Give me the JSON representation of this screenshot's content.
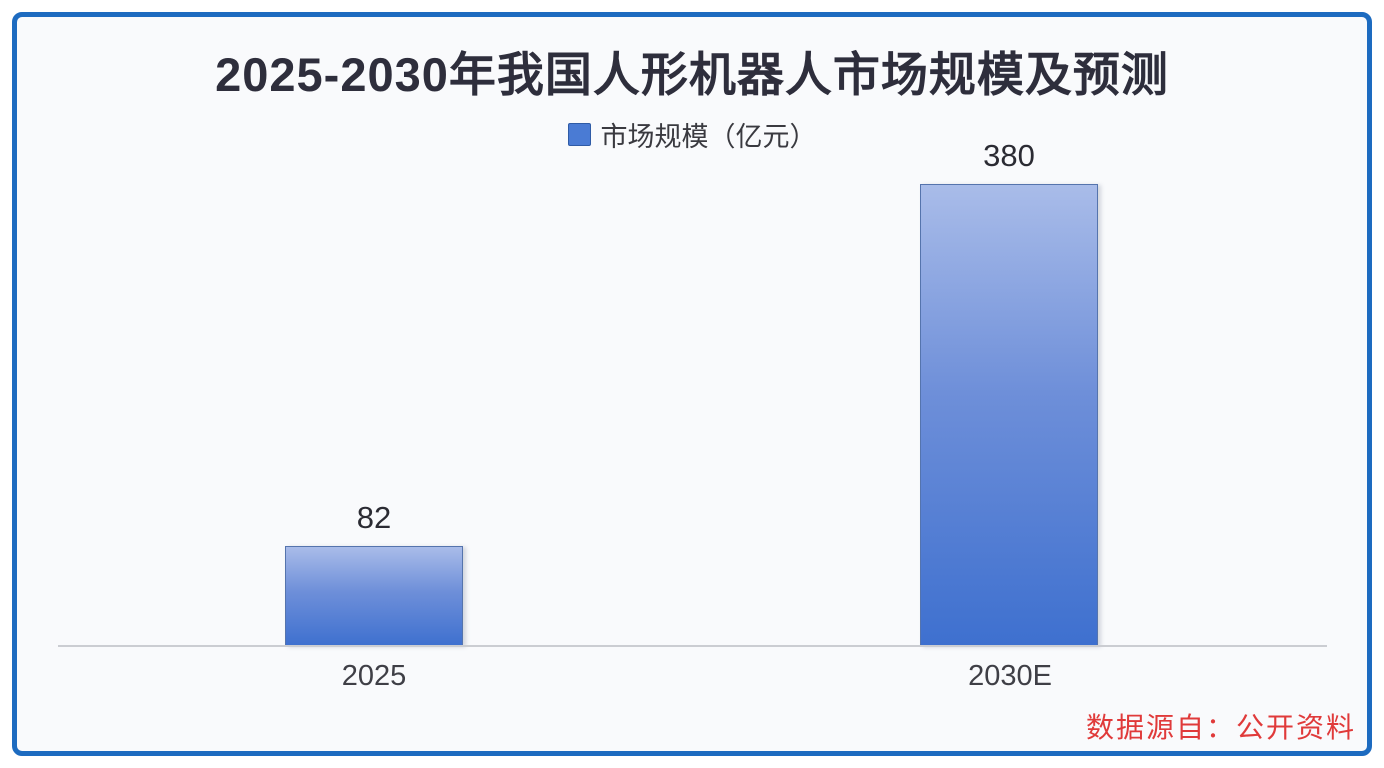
{
  "chart_data": {
    "type": "bar",
    "title": "2025-2030年我国人形机器人市场规模及预测",
    "legend": [
      "市场规模（亿元）"
    ],
    "legend_position": "top-center",
    "categories": [
      "2025",
      "2030E"
    ],
    "values": [
      82,
      380
    ],
    "ylim": [
      0,
      380
    ],
    "grid": false,
    "xlabel": "",
    "ylabel": "市场规模（亿元）"
  },
  "source_note": "数据源自：公开资料",
  "colors": {
    "frame_border": "#1d6bc0",
    "background": "#f9fafc",
    "title_text": "#2e2e3c",
    "legend_swatch": "#4a7bd4",
    "bar_gradient_top": "#a9bce9",
    "bar_gradient_bottom": "#3e70cf",
    "bar_border": "#5574ad",
    "axis_line": "#cbcdd2",
    "value_label": "#2b2b33",
    "axis_label": "#3f3f46",
    "source_text": "#e03a3a"
  }
}
